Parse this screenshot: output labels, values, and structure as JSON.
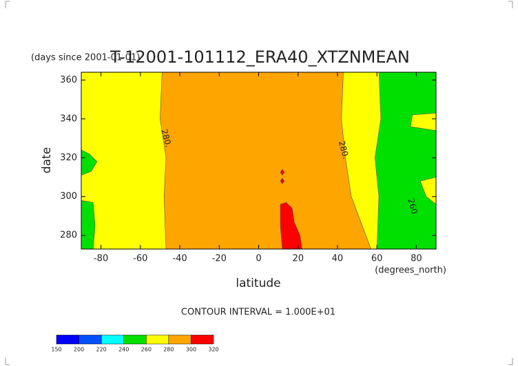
{
  "chart_data": {
    "type": "contour",
    "title": "T-12001-101112_ERA40_XTZNMEAN",
    "subtitle": "(days since 2001-01-01)",
    "x_label": "latitude",
    "x_unit": "(degrees_north)",
    "y_label": "date",
    "note": "CONTOUR INTERVAL = 1.000E+01",
    "xlim": [
      -90,
      90
    ],
    "ylim": [
      273,
      364
    ],
    "xticks": [
      -80,
      -60,
      -40,
      -20,
      0,
      20,
      40,
      60,
      80
    ],
    "yticks": [
      280,
      300,
      320,
      340,
      360
    ],
    "colorbar": {
      "levels": [
        150,
        200,
        220,
        240,
        260,
        280,
        300,
        320
      ],
      "colors": [
        "#0000ff",
        "#0050ff",
        "#00ffff",
        "#00e000",
        "#ffff00",
        "#ffa500",
        "#ff0000"
      ]
    },
    "regions": [
      {
        "min": 260,
        "points": [
          [
            -90,
            273
          ],
          [
            90,
            273
          ],
          [
            90,
            364
          ],
          [
            -90,
            364
          ]
        ]
      },
      {
        "min": 280,
        "points": [
          [
            -49,
            364
          ],
          [
            43,
            364
          ],
          [
            42,
            340
          ],
          [
            44,
            320
          ],
          [
            47,
            300
          ],
          [
            57,
            273
          ],
          [
            -47,
            273
          ],
          [
            -48,
            300
          ],
          [
            -47,
            320
          ],
          [
            -50,
            340
          ]
        ]
      },
      {
        "min": 240,
        "points": [
          [
            -90,
            273
          ],
          [
            -84,
            273
          ],
          [
            -83,
            285
          ],
          [
            -84,
            297
          ],
          [
            -90,
            298
          ]
        ]
      },
      {
        "min": 240,
        "points": [
          [
            -90,
            311
          ],
          [
            -85,
            313
          ],
          [
            -82,
            318
          ],
          [
            -86,
            322
          ],
          [
            -90,
            324
          ]
        ]
      },
      {
        "min": 240,
        "points": [
          [
            61,
            364
          ],
          [
            90,
            364
          ],
          [
            90,
            343
          ],
          [
            78,
            342
          ],
          [
            77,
            336
          ],
          [
            90,
            334
          ],
          [
            90,
            310
          ],
          [
            82,
            308
          ],
          [
            85,
            300
          ],
          [
            90,
            296
          ],
          [
            90,
            273
          ],
          [
            60,
            273
          ],
          [
            61,
            300
          ],
          [
            59,
            320
          ],
          [
            62,
            340
          ]
        ]
      },
      {
        "min": 300,
        "points": [
          [
            12,
            273
          ],
          [
            22,
            273
          ],
          [
            21,
            280
          ],
          [
            18,
            287
          ],
          [
            17,
            294
          ],
          [
            14,
            297
          ],
          [
            11,
            296
          ],
          [
            11,
            285
          ]
        ]
      },
      {
        "min": 300,
        "points": [
          [
            12,
            311
          ],
          [
            13,
            312.5
          ],
          [
            12,
            314
          ],
          [
            11,
            312.5
          ]
        ]
      },
      {
        "min": 300,
        "points": [
          [
            12,
            306.5
          ],
          [
            13,
            308
          ],
          [
            12,
            309.5
          ],
          [
            11,
            308
          ]
        ]
      }
    ],
    "annotations": [
      {
        "text": "280.",
        "x": -47,
        "y": 330
      },
      {
        "text": "280.",
        "x": 43,
        "y": 324
      },
      {
        "text": "260",
        "x": 78,
        "y": 295
      }
    ]
  }
}
